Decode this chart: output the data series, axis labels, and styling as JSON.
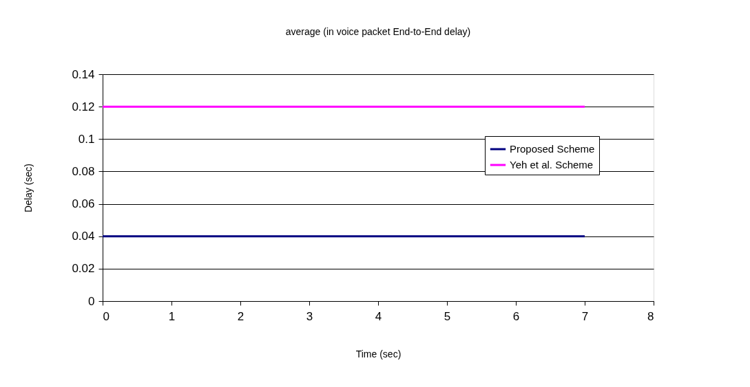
{
  "chart_data": {
    "type": "line",
    "title": "average (in voice packet End-to-End delay)",
    "xlabel": "Time (sec)",
    "ylabel": "Delay  (sec)",
    "x": [
      0,
      7
    ],
    "series": [
      {
        "name": "Proposed Scheme",
        "color": "#000080",
        "values": [
          0.04,
          0.04
        ]
      },
      {
        "name": "Yeh et al. Scheme",
        "color": "#ff00ff",
        "values": [
          0.12,
          0.12
        ]
      }
    ],
    "xlim": [
      0,
      8
    ],
    "xticks": [
      0,
      1,
      2,
      3,
      4,
      5,
      6,
      7,
      8
    ],
    "ylim": [
      0,
      0.14
    ],
    "yticks": [
      0,
      0.02,
      0.04,
      0.06,
      0.08,
      0.1,
      0.12,
      0.14
    ],
    "grid": "y",
    "legend": "right",
    "marker": "none",
    "line_style": "solid"
  }
}
